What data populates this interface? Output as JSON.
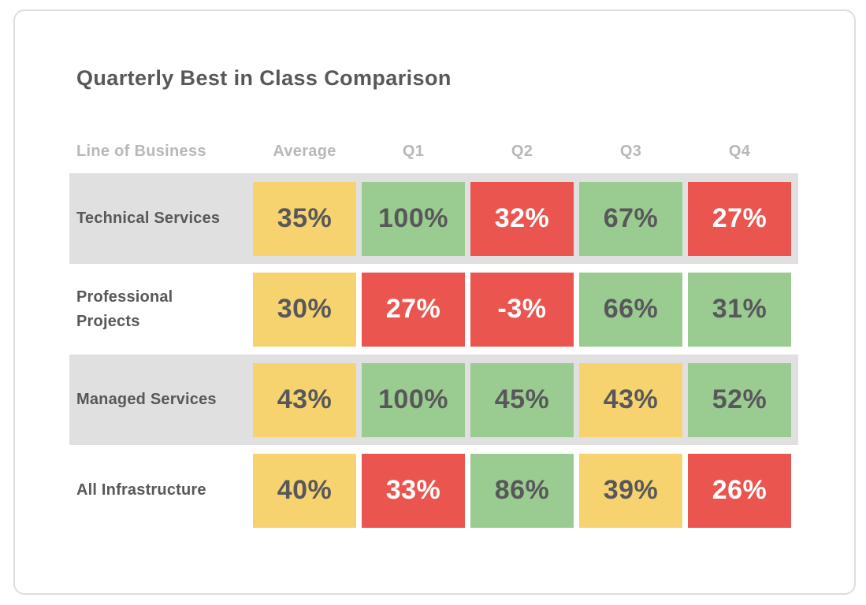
{
  "colors": {
    "yellow": "#F7D36F",
    "green": "#9ACC91",
    "red": "#EA5550",
    "stripe": "#E0E0E0",
    "dark_text": "#58585A",
    "header_text": "#B7B8BA",
    "card_border": "#DEDEDE",
    "value_text_on_red": "#FFFFFF"
  },
  "chart_data": {
    "type": "table",
    "title": "Quarterly Best in Class Comparison",
    "columns": [
      "Line of Business",
      "Average",
      "Q1",
      "Q2",
      "Q3",
      "Q4"
    ],
    "rows": [
      {
        "label": "Technical Services",
        "striped": true,
        "values": [
          35,
          100,
          32,
          67,
          27
        ],
        "cells": [
          {
            "value": "35%",
            "color": "yellow"
          },
          {
            "value": "100%",
            "color": "green"
          },
          {
            "value": "32%",
            "color": "red"
          },
          {
            "value": "67%",
            "color": "green"
          },
          {
            "value": "27%",
            "color": "red"
          }
        ]
      },
      {
        "label": "Professional Projects",
        "striped": false,
        "values": [
          30,
          27,
          -3,
          66,
          31
        ],
        "cells": [
          {
            "value": "30%",
            "color": "yellow"
          },
          {
            "value": "27%",
            "color": "red"
          },
          {
            "value": "-3%",
            "color": "red"
          },
          {
            "value": "66%",
            "color": "green"
          },
          {
            "value": "31%",
            "color": "green"
          }
        ]
      },
      {
        "label": "Managed Services",
        "striped": true,
        "values": [
          43,
          100,
          45,
          43,
          52
        ],
        "cells": [
          {
            "value": "43%",
            "color": "yellow"
          },
          {
            "value": "100%",
            "color": "green"
          },
          {
            "value": "45%",
            "color": "green"
          },
          {
            "value": "43%",
            "color": "yellow"
          },
          {
            "value": "52%",
            "color": "green"
          }
        ]
      },
      {
        "label": "All Infrastructure",
        "striped": false,
        "values": [
          40,
          33,
          86,
          39,
          26
        ],
        "cells": [
          {
            "value": "40%",
            "color": "yellow"
          },
          {
            "value": "33%",
            "color": "red"
          },
          {
            "value": "86%",
            "color": "green"
          },
          {
            "value": "39%",
            "color": "yellow"
          },
          {
            "value": "26%",
            "color": "red"
          }
        ]
      }
    ]
  }
}
